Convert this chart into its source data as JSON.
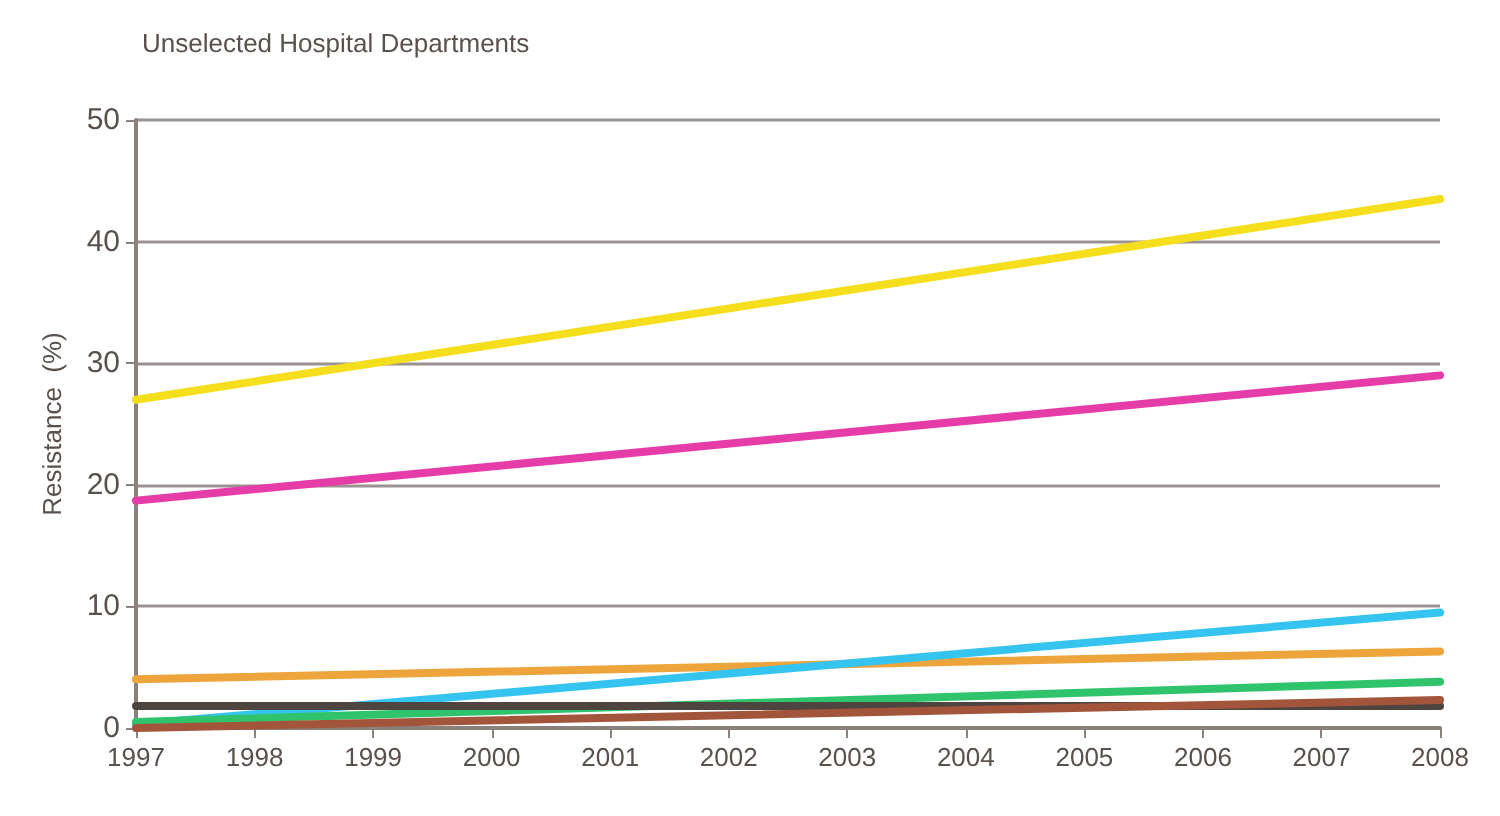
{
  "chart_data": {
    "type": "line",
    "title": "Unselected Hospital Departments",
    "ylabel": "Resistance  (%)",
    "x": [
      1997,
      2008
    ],
    "series": [
      {
        "color": "#f5de1c",
        "values": [
          27,
          43.5
        ]
      },
      {
        "color": "#e63ca8",
        "values": [
          18.7,
          29
        ]
      },
      {
        "color": "#eda43a",
        "values": [
          4,
          6.3
        ]
      },
      {
        "color": "#35c4f0",
        "values": [
          0.3,
          9.5
        ]
      },
      {
        "color": "#2fc46c",
        "values": [
          0.5,
          3.8
        ]
      },
      {
        "color": "#4e4440",
        "values": [
          1.8,
          1.8
        ]
      },
      {
        "color": "#a3553b",
        "values": [
          0,
          2.3
        ]
      }
    ],
    "xlim": [
      1997,
      2008
    ],
    "xticks": [
      1997,
      1998,
      1999,
      2000,
      2001,
      2002,
      2003,
      2004,
      2005,
      2006,
      2007,
      2008
    ],
    "ylim": [
      0,
      50
    ],
    "yticks": [
      0,
      10,
      20,
      30,
      40,
      50
    ],
    "grid": "y",
    "marker": "none",
    "line_style": "solid"
  }
}
